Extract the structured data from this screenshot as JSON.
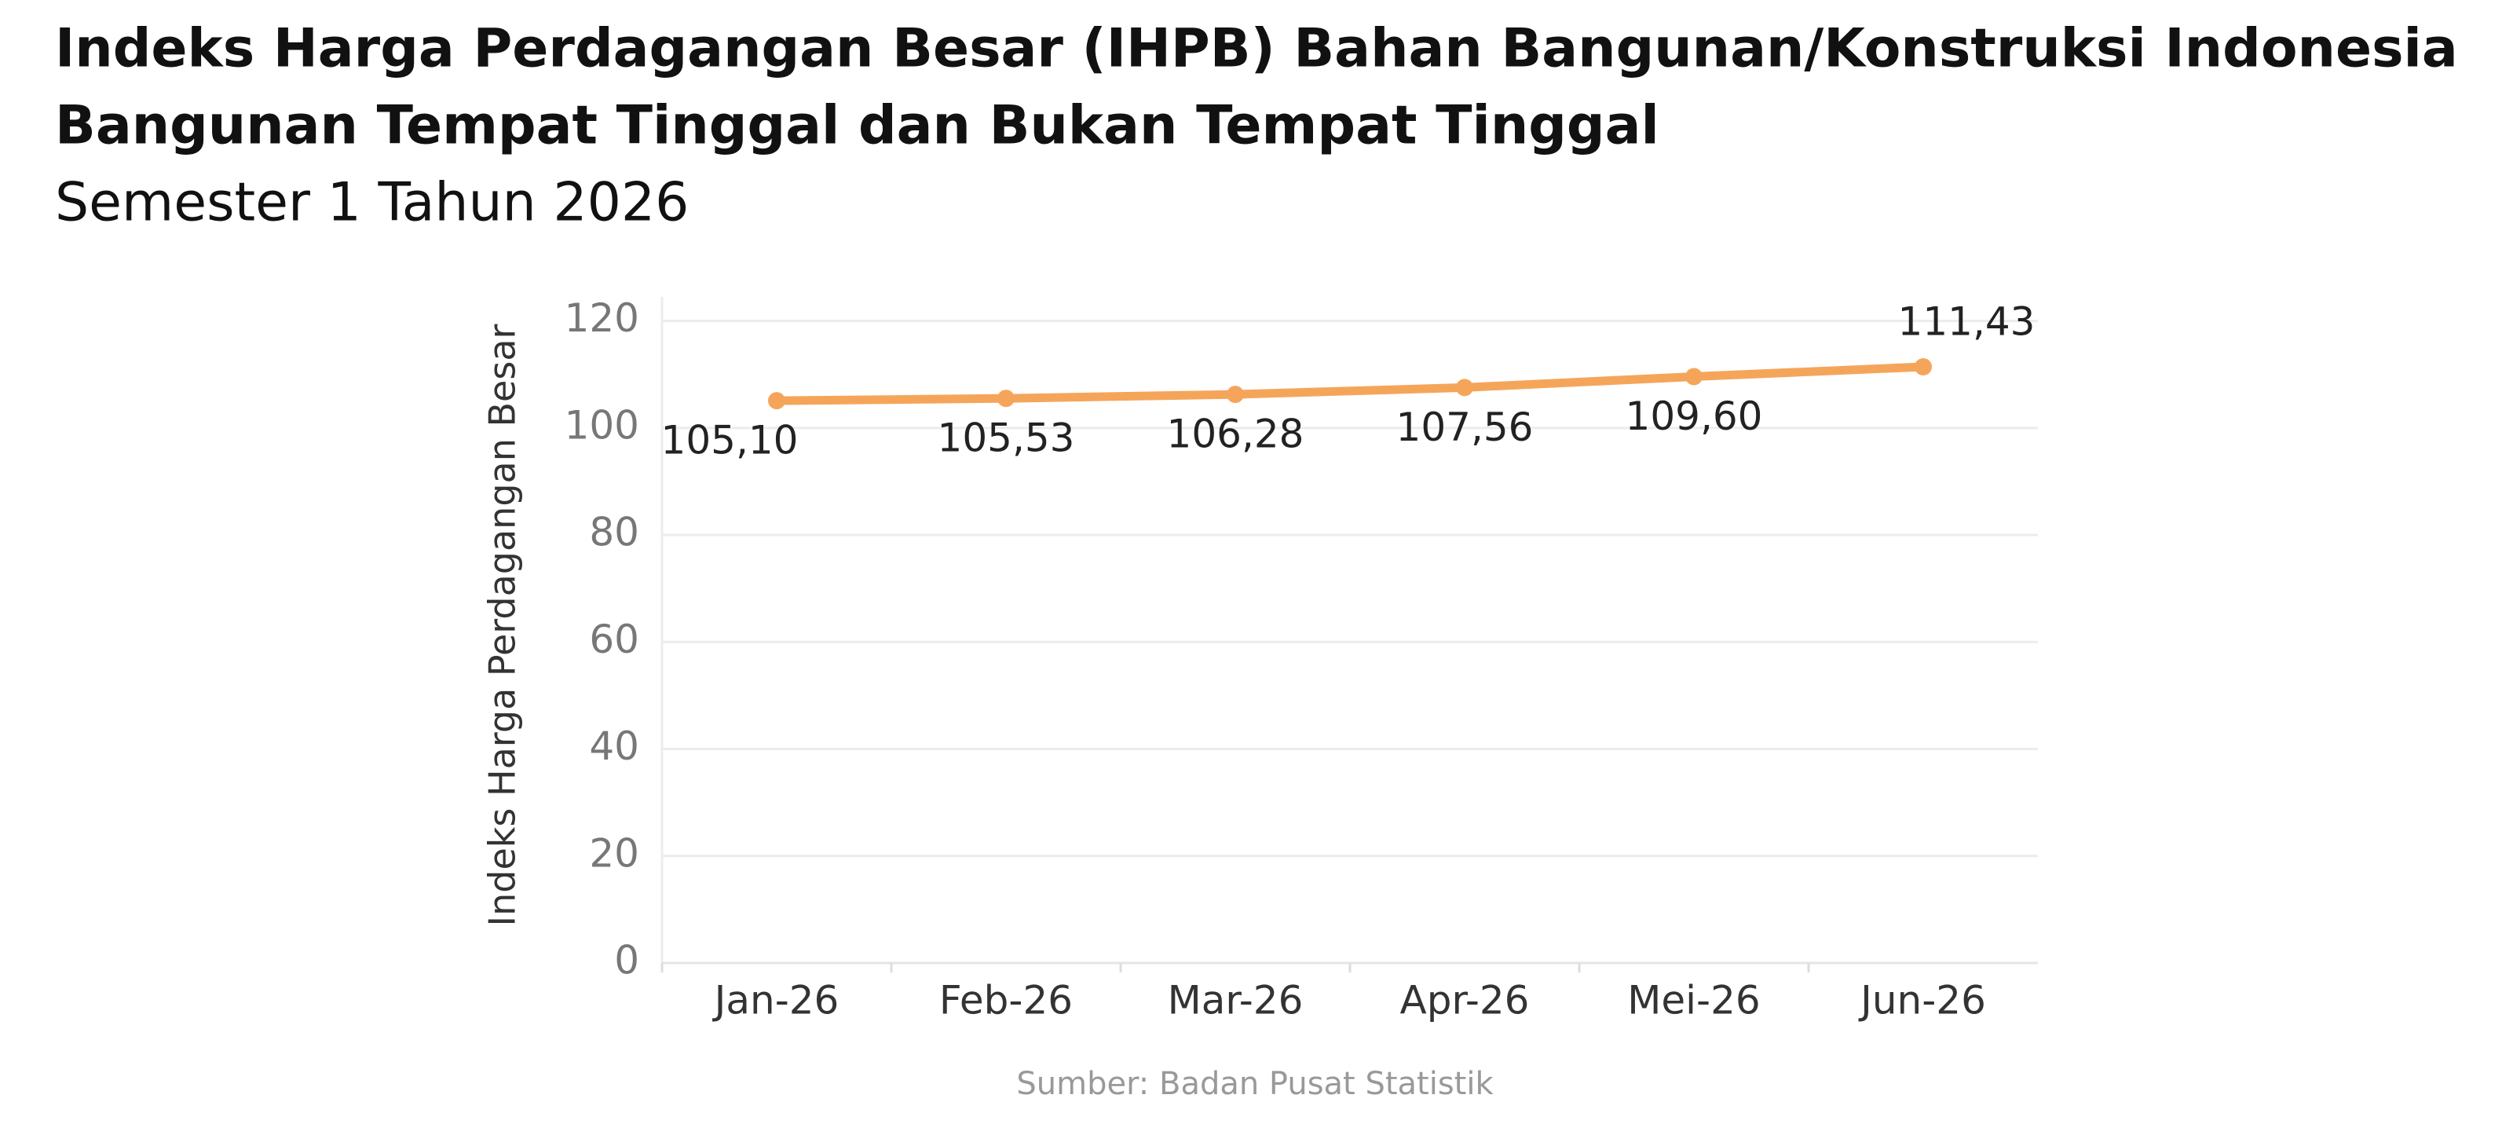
{
  "chart_data": {
    "type": "line",
    "title": [
      "Indeks Harga Perdagangan Besar (IHPB) Bahan Bangunan/Konstruksi Indonesia",
      "Bangunan Tempat Tinggal dan Bukan Tempat Tinggal"
    ],
    "subtitle": "Semester 1 Tahun 2026",
    "y_label": "Indeks Harga Perdagangan Besar",
    "source": "Sumber: Badan Pusat Statistik",
    "categories": [
      "Jan-26",
      "Feb-26",
      "Mar-26",
      "Apr-26",
      "Mei-26",
      "Jun-26"
    ],
    "series": [
      {
        "name": "IHPB",
        "color": "#f5a55a",
        "values": [
          105.1,
          105.53,
          106.28,
          107.56,
          109.6,
          111.43
        ],
        "value_labels": [
          "105,10",
          "105,53",
          "106,28",
          "107,56",
          "109,60",
          "111,43"
        ]
      }
    ],
    "ylim": [
      0,
      124.5
    ],
    "yticks": [
      0,
      20,
      40,
      60,
      80,
      100,
      120
    ],
    "grid": true
  }
}
